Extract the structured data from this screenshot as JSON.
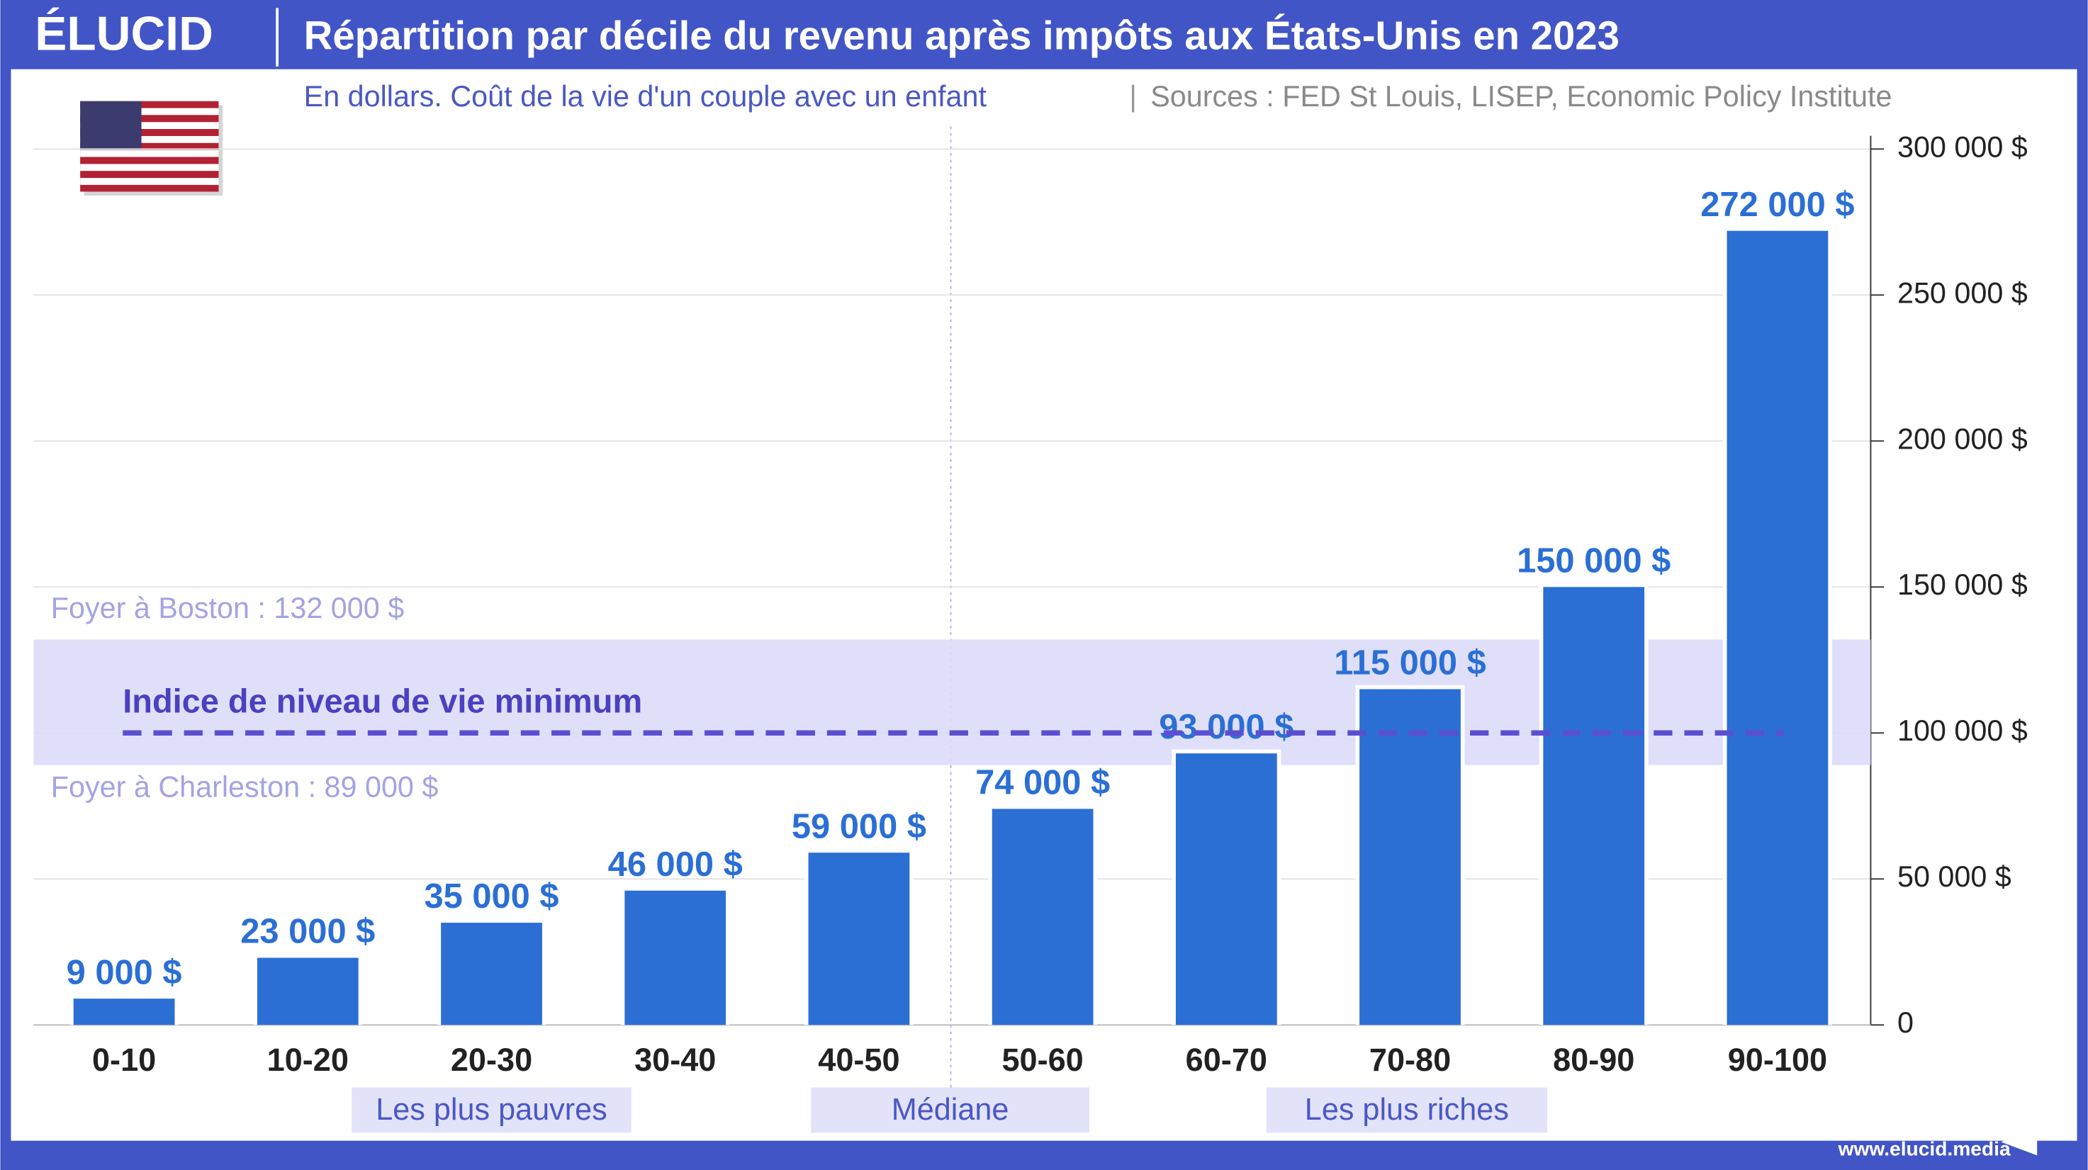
{
  "brand": "ÉLUCID",
  "footer": "www.elucid.media",
  "chart_data": {
    "type": "bar",
    "title": "Répartition par décile du revenu après impôts aux États-Unis en 2023",
    "subtitle": "En dollars. Coût de la vie d'un couple avec un enfant",
    "source": "Sources : FED St Louis, LISEP, Economic Policy Institute",
    "categories": [
      "0-10",
      "10-20",
      "20-30",
      "30-40",
      "40-50",
      "50-60",
      "60-70",
      "70-80",
      "80-90",
      "90-100"
    ],
    "values": [
      9000,
      23000,
      35000,
      46000,
      59000,
      74000,
      93000,
      115000,
      150000,
      272000
    ],
    "value_labels": [
      "9 000 $",
      "23 000 $",
      "35 000 $",
      "46 000 $",
      "59 000 $",
      "74 000 $",
      "93 000 $",
      "115 000 $",
      "150 000 $",
      "272 000 $"
    ],
    "color": "#2b6fd5",
    "ylim": [
      0,
      300000
    ],
    "yticks": [
      0,
      {
        "value": 50000,
        "label": "50 000 $"
      },
      {
        "value": 100000,
        "label": "100 000 $"
      },
      {
        "value": 150000,
        "label": "150 000 $"
      },
      {
        "value": 200000,
        "label": "200 000 $"
      },
      {
        "value": 250000,
        "label": "250 000 $"
      },
      {
        "value": 300000,
        "label": "300 000 $"
      }
    ],
    "grid": true,
    "band": {
      "upper": {
        "label": "Foyer à Boston : 132 000 $",
        "value": 132000
      },
      "lower": {
        "label": "Foyer à Charleston : 89 000 $",
        "value": 89000
      }
    },
    "reference_line": {
      "label": "Indice de niveau de vie minimum",
      "value": 100000
    },
    "groups": [
      "Les plus pauvres",
      "Médiane",
      "Les plus riches"
    ]
  }
}
